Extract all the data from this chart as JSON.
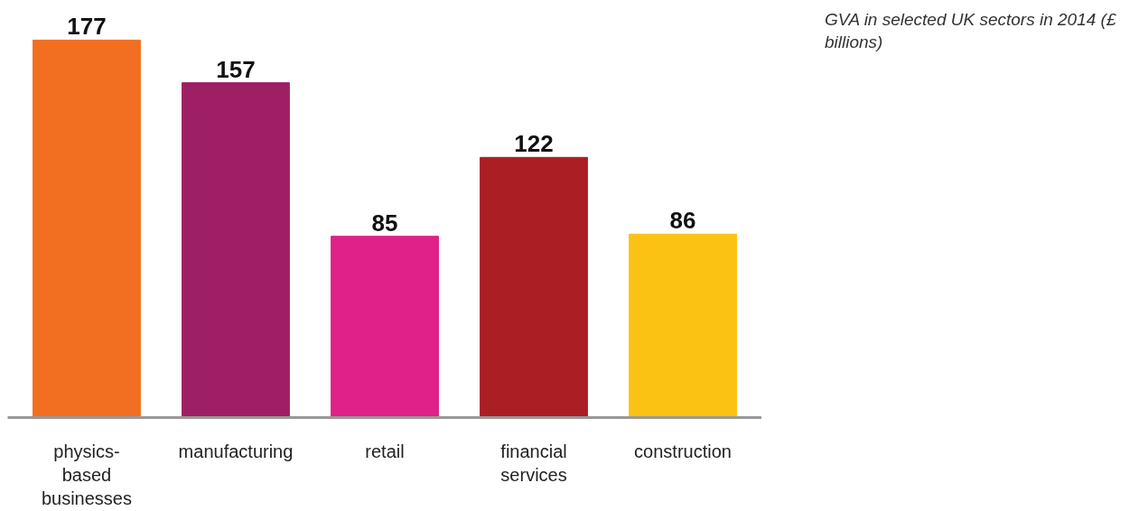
{
  "chart_data": {
    "type": "bar",
    "title": "GVA in selected UK sectors in 2014 (£ billions)",
    "categories": [
      "physics-based businesses",
      "manufacturing",
      "retail",
      "financial services",
      "construction"
    ],
    "values": [
      177,
      157,
      85,
      122,
      86
    ],
    "colors": [
      "#f26f21",
      "#9e1f63",
      "#df2189",
      "#ab1f24",
      "#fcc213"
    ],
    "data_labels": true,
    "grid": false
  }
}
